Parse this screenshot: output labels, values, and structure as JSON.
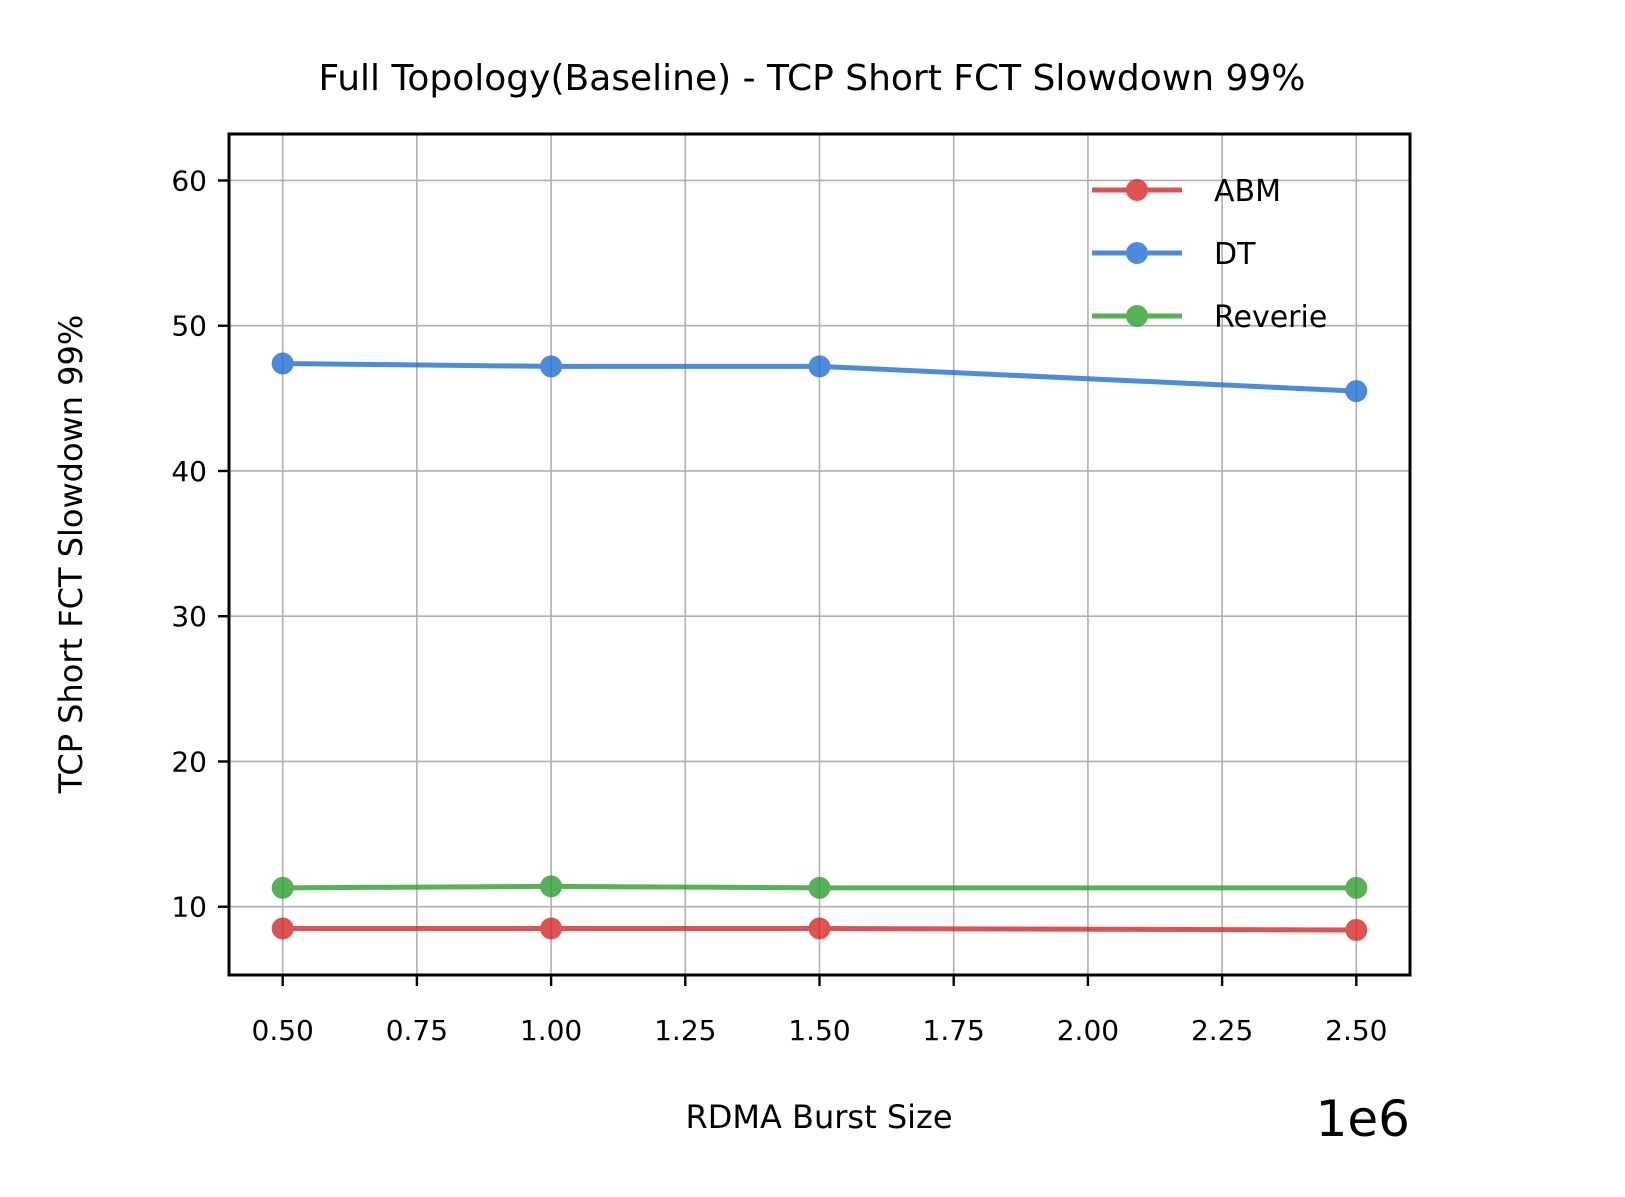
{
  "chart_data": {
    "type": "line",
    "title": "Full Topology(Baseline) - TCP Short FCT Slowdown 99%",
    "xlabel": "RDMA Burst Size",
    "ylabel": "TCP Short FCT Slowdown 99%",
    "x_offset_label": "1e6",
    "x_scale": 1000000,
    "xlim": [
      0.4,
      2.6
    ],
    "ylim": [
      5.3,
      63.2
    ],
    "xticks": [
      0.5,
      0.75,
      1.0,
      1.25,
      1.5,
      1.75,
      2.0,
      2.25,
      2.5
    ],
    "xtick_labels": [
      "0.50",
      "0.75",
      "1.00",
      "1.25",
      "1.50",
      "1.75",
      "2.00",
      "2.25",
      "2.50"
    ],
    "yticks": [
      10,
      20,
      30,
      40,
      50,
      60
    ],
    "ytick_labels": [
      "10",
      "20",
      "30",
      "40",
      "50",
      "60"
    ],
    "grid": true,
    "legend_position": "top-right",
    "x": [
      500000,
      1000000,
      1500000,
      2500000
    ],
    "series": [
      {
        "name": "ABM",
        "color": "#d62728",
        "values": [
          8.5,
          8.5,
          8.5,
          8.4
        ]
      },
      {
        "name": "DT",
        "color": "#1f6fd6",
        "values": [
          47.4,
          47.2,
          47.2,
          45.5
        ]
      },
      {
        "name": "Reverie",
        "color": "#2ca02c",
        "values": [
          11.3,
          11.4,
          11.3,
          11.3
        ]
      }
    ]
  }
}
